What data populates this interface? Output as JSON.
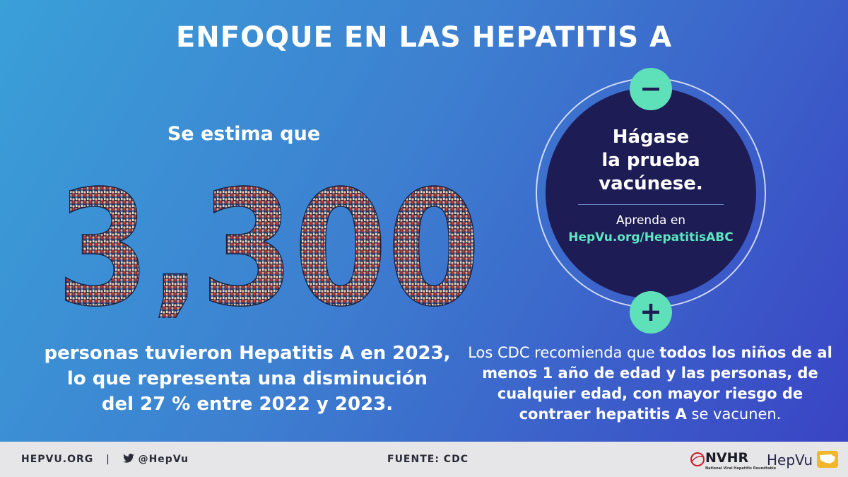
{
  "title": "ENFOQUE EN LAS HEPATITIS A",
  "lead": "Se estima que",
  "big_number": "3,300",
  "description": [
    "personas tuvieron Hepatitis A en 2023,",
    "lo que representa una disminución",
    "del 27 % entre 2022 y 2023."
  ],
  "circle": {
    "heading": [
      "Hágase",
      "la prueba",
      "vacúnese."
    ],
    "learn": "Aprenda en",
    "url": "HepVu.org/HepatitisABC",
    "minus": "−",
    "plus": "+"
  },
  "recommendation": {
    "prefix": "Los CDC recomienda que ",
    "bold": "todos los niños de al menos 1 año de edad y las personas, de cualquier edad, con mayor riesgo de contraer hepatitis A",
    "suffix": " se vacunen."
  },
  "footer": {
    "site": "HEPVU.ORG",
    "separator": "|",
    "twitter": "@HepVu",
    "source": "FUENTE: CDC",
    "nvhr": "NVHR",
    "nvhr_sub": "National Viral Hepatitis Roundtable",
    "hepvu": "HepVu"
  },
  "colors": {
    "gradient_start": "#3aa0d8",
    "gradient_end": "#3a44c4",
    "circle": "#1e1c55",
    "accent": "#5ee0b8",
    "footer": "#e6e6e8"
  },
  "icons": [
    "twitter-bird-icon",
    "nvhr-logo-icon",
    "hepvu-usa-map-icon"
  ]
}
